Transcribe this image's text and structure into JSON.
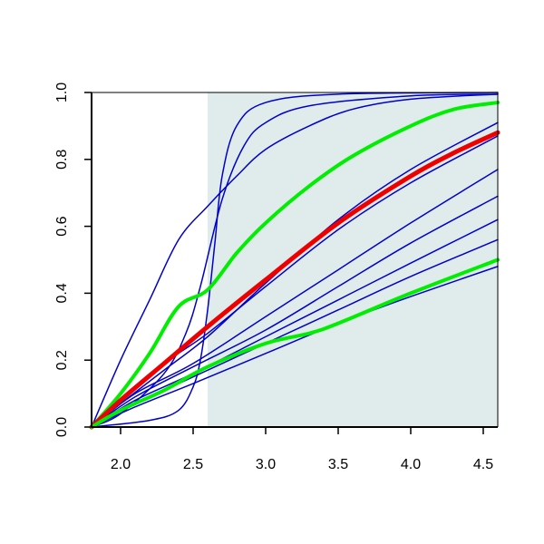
{
  "chart_data": {
    "type": "line",
    "title": "",
    "xlabel": "",
    "ylabel": "",
    "xlim": [
      1.8,
      4.6
    ],
    "ylim": [
      0.0,
      1.0
    ],
    "grid": false,
    "shaded_region": {
      "x_from": 2.6,
      "x_to": 4.6,
      "color": "#e0ecec"
    },
    "x_ticks": [
      {
        "value": 2.0,
        "label": "2.0"
      },
      {
        "value": 2.5,
        "label": "2.5"
      },
      {
        "value": 3.0,
        "label": "3.0"
      },
      {
        "value": 3.5,
        "label": "3.5"
      },
      {
        "value": 4.0,
        "label": "4.0"
      },
      {
        "value": 4.5,
        "label": "4.5"
      }
    ],
    "y_ticks": [
      {
        "value": 0.0,
        "label": "0.0"
      },
      {
        "value": 0.2,
        "label": "0.2"
      },
      {
        "value": 0.4,
        "label": "0.4"
      },
      {
        "value": 0.6,
        "label": "0.6"
      },
      {
        "value": 0.8,
        "label": "0.8"
      },
      {
        "value": 1.0,
        "label": "1.0"
      }
    ],
    "series": [
      {
        "color": "#0000cc",
        "width": 1.5,
        "points": [
          [
            1.8,
            0
          ],
          [
            2.2,
            0.02
          ],
          [
            2.4,
            0.05
          ],
          [
            2.5,
            0.12
          ],
          [
            2.55,
            0.2
          ],
          [
            2.6,
            0.35
          ],
          [
            2.65,
            0.55
          ],
          [
            2.7,
            0.75
          ],
          [
            2.8,
            0.9
          ],
          [
            3.0,
            0.97
          ],
          [
            3.5,
            0.995
          ],
          [
            4.6,
            1.0
          ]
        ]
      },
      {
        "color": "#0000cc",
        "width": 1.5,
        "points": [
          [
            1.8,
            0
          ],
          [
            2.0,
            0.04
          ],
          [
            2.3,
            0.16
          ],
          [
            2.45,
            0.28
          ],
          [
            2.55,
            0.42
          ],
          [
            2.7,
            0.68
          ],
          [
            2.85,
            0.84
          ],
          [
            3.0,
            0.91
          ],
          [
            3.3,
            0.96
          ],
          [
            4.0,
            0.99
          ],
          [
            4.6,
            0.995
          ]
        ]
      },
      {
        "color": "#0000cc",
        "width": 1.5,
        "points": [
          [
            1.8,
            0
          ],
          [
            2.0,
            0.2
          ],
          [
            2.2,
            0.38
          ],
          [
            2.4,
            0.56
          ],
          [
            2.6,
            0.66
          ],
          [
            2.8,
            0.75
          ],
          [
            3.0,
            0.83
          ],
          [
            3.3,
            0.9
          ],
          [
            3.6,
            0.95
          ],
          [
            4.0,
            0.98
          ],
          [
            4.6,
            0.995
          ]
        ]
      },
      {
        "color": "#0000cc",
        "width": 1.5,
        "points": [
          [
            1.8,
            0
          ],
          [
            2.0,
            0.08
          ],
          [
            2.3,
            0.19
          ],
          [
            2.6,
            0.28
          ],
          [
            3.0,
            0.42
          ],
          [
            3.5,
            0.59
          ],
          [
            4.0,
            0.73
          ],
          [
            4.6,
            0.87
          ]
        ]
      },
      {
        "color": "#0000cc",
        "width": 1.5,
        "points": [
          [
            1.8,
            0
          ],
          [
            2.0,
            0.07
          ],
          [
            2.3,
            0.17
          ],
          [
            2.6,
            0.27
          ],
          [
            3.0,
            0.43
          ],
          [
            3.5,
            0.62
          ],
          [
            4.0,
            0.77
          ],
          [
            4.6,
            0.91
          ]
        ]
      },
      {
        "color": "#0000cc",
        "width": 1.5,
        "points": [
          [
            1.8,
            0
          ],
          [
            2.1,
            0.1
          ],
          [
            2.5,
            0.19
          ],
          [
            3.0,
            0.33
          ],
          [
            3.5,
            0.47
          ],
          [
            4.0,
            0.61
          ],
          [
            4.6,
            0.77
          ]
        ]
      },
      {
        "color": "#0000cc",
        "width": 1.5,
        "points": [
          [
            1.8,
            0
          ],
          [
            2.1,
            0.09
          ],
          [
            2.5,
            0.18
          ],
          [
            3.0,
            0.29
          ],
          [
            3.5,
            0.42
          ],
          [
            4.0,
            0.55
          ],
          [
            4.6,
            0.69
          ]
        ]
      },
      {
        "color": "#0000cc",
        "width": 1.5,
        "points": [
          [
            1.8,
            0
          ],
          [
            2.1,
            0.08
          ],
          [
            2.5,
            0.16
          ],
          [
            3.0,
            0.27
          ],
          [
            3.5,
            0.38
          ],
          [
            4.0,
            0.49
          ],
          [
            4.6,
            0.62
          ]
        ]
      },
      {
        "color": "#0000cc",
        "width": 1.5,
        "points": [
          [
            1.8,
            0
          ],
          [
            2.1,
            0.07
          ],
          [
            2.5,
            0.15
          ],
          [
            3.0,
            0.25
          ],
          [
            3.5,
            0.35
          ],
          [
            4.0,
            0.45
          ],
          [
            4.6,
            0.56
          ]
        ]
      },
      {
        "color": "#0000cc",
        "width": 1.5,
        "points": [
          [
            1.8,
            0
          ],
          [
            2.1,
            0.06
          ],
          [
            2.5,
            0.13
          ],
          [
            3.0,
            0.22
          ],
          [
            3.5,
            0.31
          ],
          [
            4.0,
            0.39
          ],
          [
            4.6,
            0.48
          ]
        ]
      },
      {
        "color": "#00ee00",
        "width": 4,
        "points": [
          [
            1.8,
            0
          ],
          [
            2.0,
            0.1
          ],
          [
            2.2,
            0.22
          ],
          [
            2.4,
            0.36
          ],
          [
            2.6,
            0.41
          ],
          [
            2.8,
            0.52
          ],
          [
            3.0,
            0.61
          ],
          [
            3.3,
            0.72
          ],
          [
            3.6,
            0.81
          ],
          [
            4.0,
            0.9
          ],
          [
            4.3,
            0.95
          ],
          [
            4.6,
            0.97
          ]
        ]
      },
      {
        "color": "#ee0000",
        "width": 5,
        "points": [
          [
            1.8,
            0
          ],
          [
            2.0,
            0.08
          ],
          [
            2.3,
            0.19
          ],
          [
            2.6,
            0.3
          ],
          [
            3.0,
            0.44
          ],
          [
            3.5,
            0.61
          ],
          [
            4.0,
            0.75
          ],
          [
            4.3,
            0.82
          ],
          [
            4.6,
            0.88
          ]
        ]
      },
      {
        "color": "#00ee00",
        "width": 4,
        "points": [
          [
            1.8,
            0
          ],
          [
            2.0,
            0.05
          ],
          [
            2.3,
            0.11
          ],
          [
            2.6,
            0.18
          ],
          [
            3.0,
            0.25
          ],
          [
            3.3,
            0.28
          ],
          [
            3.5,
            0.31
          ],
          [
            4.0,
            0.4
          ],
          [
            4.6,
            0.5
          ]
        ]
      }
    ]
  }
}
